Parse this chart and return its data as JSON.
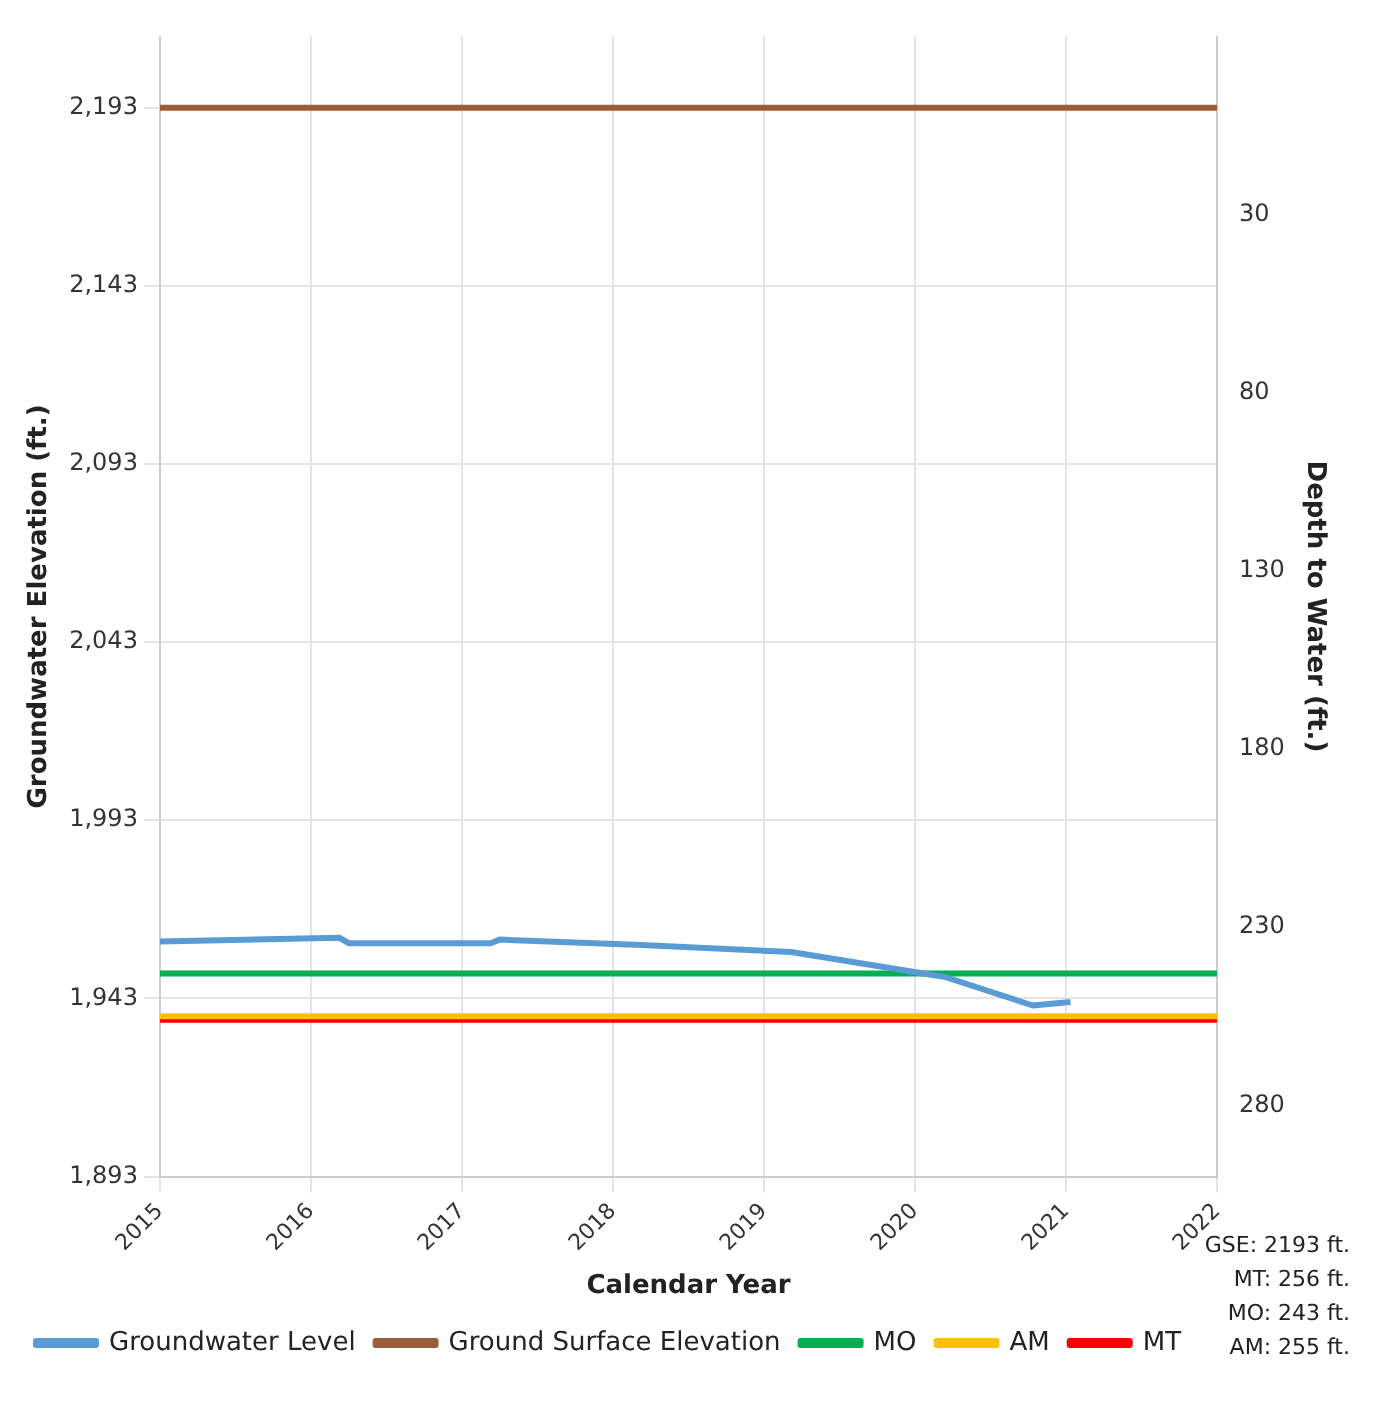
{
  "chart_data": {
    "type": "line",
    "xlabel": "Calendar Year",
    "ylabel": "Groundwater Elevation (ft.)",
    "y2label": "Depth to Water (ft.)",
    "xlim": [
      2015,
      2022
    ],
    "xticks": [
      2015,
      2016,
      2017,
      2018,
      2019,
      2020,
      2021,
      2022
    ],
    "ylim": [
      1893,
      2213
    ],
    "yticks": [
      {
        "value": 1893,
        "label": "1,893"
      },
      {
        "value": 1943,
        "label": "1,943"
      },
      {
        "value": 1993,
        "label": "1,993"
      },
      {
        "value": 2043,
        "label": "2,043"
      },
      {
        "value": 2093,
        "label": "2,093"
      },
      {
        "value": 2143,
        "label": "2,143"
      },
      {
        "value": 2193,
        "label": "2,193"
      }
    ],
    "y2lim": [
      300,
      -20
    ],
    "y2ticks": [
      30,
      80,
      130,
      180,
      230,
      280
    ],
    "grid": true,
    "legend": "bottom",
    "series": [
      {
        "name": "Groundwater Level",
        "color": "#5b9bd5",
        "x": [
          2015,
          2016.19,
          2016.25,
          2017.19,
          2017.25,
          2018.19,
          2019.18,
          2020.2,
          2020.78,
          2021.03
        ],
        "values": [
          1959,
          1960,
          1958.5,
          1958.5,
          1959.5,
          1958,
          1956,
          1949,
          1941,
          1942
        ]
      },
      {
        "name": "Ground Surface Elevation",
        "color": "#9c5b3b",
        "x": [
          2015,
          2022
        ],
        "values": [
          2193,
          2193
        ]
      },
      {
        "name": "MO",
        "color": "#00b050",
        "x": [
          2015,
          2022
        ],
        "values": [
          1950,
          1950
        ]
      },
      {
        "name": "AM",
        "color": "#ffc000",
        "x": [
          2015,
          2022
        ],
        "values": [
          1938,
          1938
        ]
      },
      {
        "name": "MT",
        "color": "#ff0000",
        "x": [
          2015,
          2022
        ],
        "values": [
          1937,
          1937
        ]
      }
    ],
    "annotations": [
      "GSE: 2193 ft.",
      "MT: 256 ft.",
      "MO: 243 ft.",
      "AM: 255 ft."
    ]
  }
}
